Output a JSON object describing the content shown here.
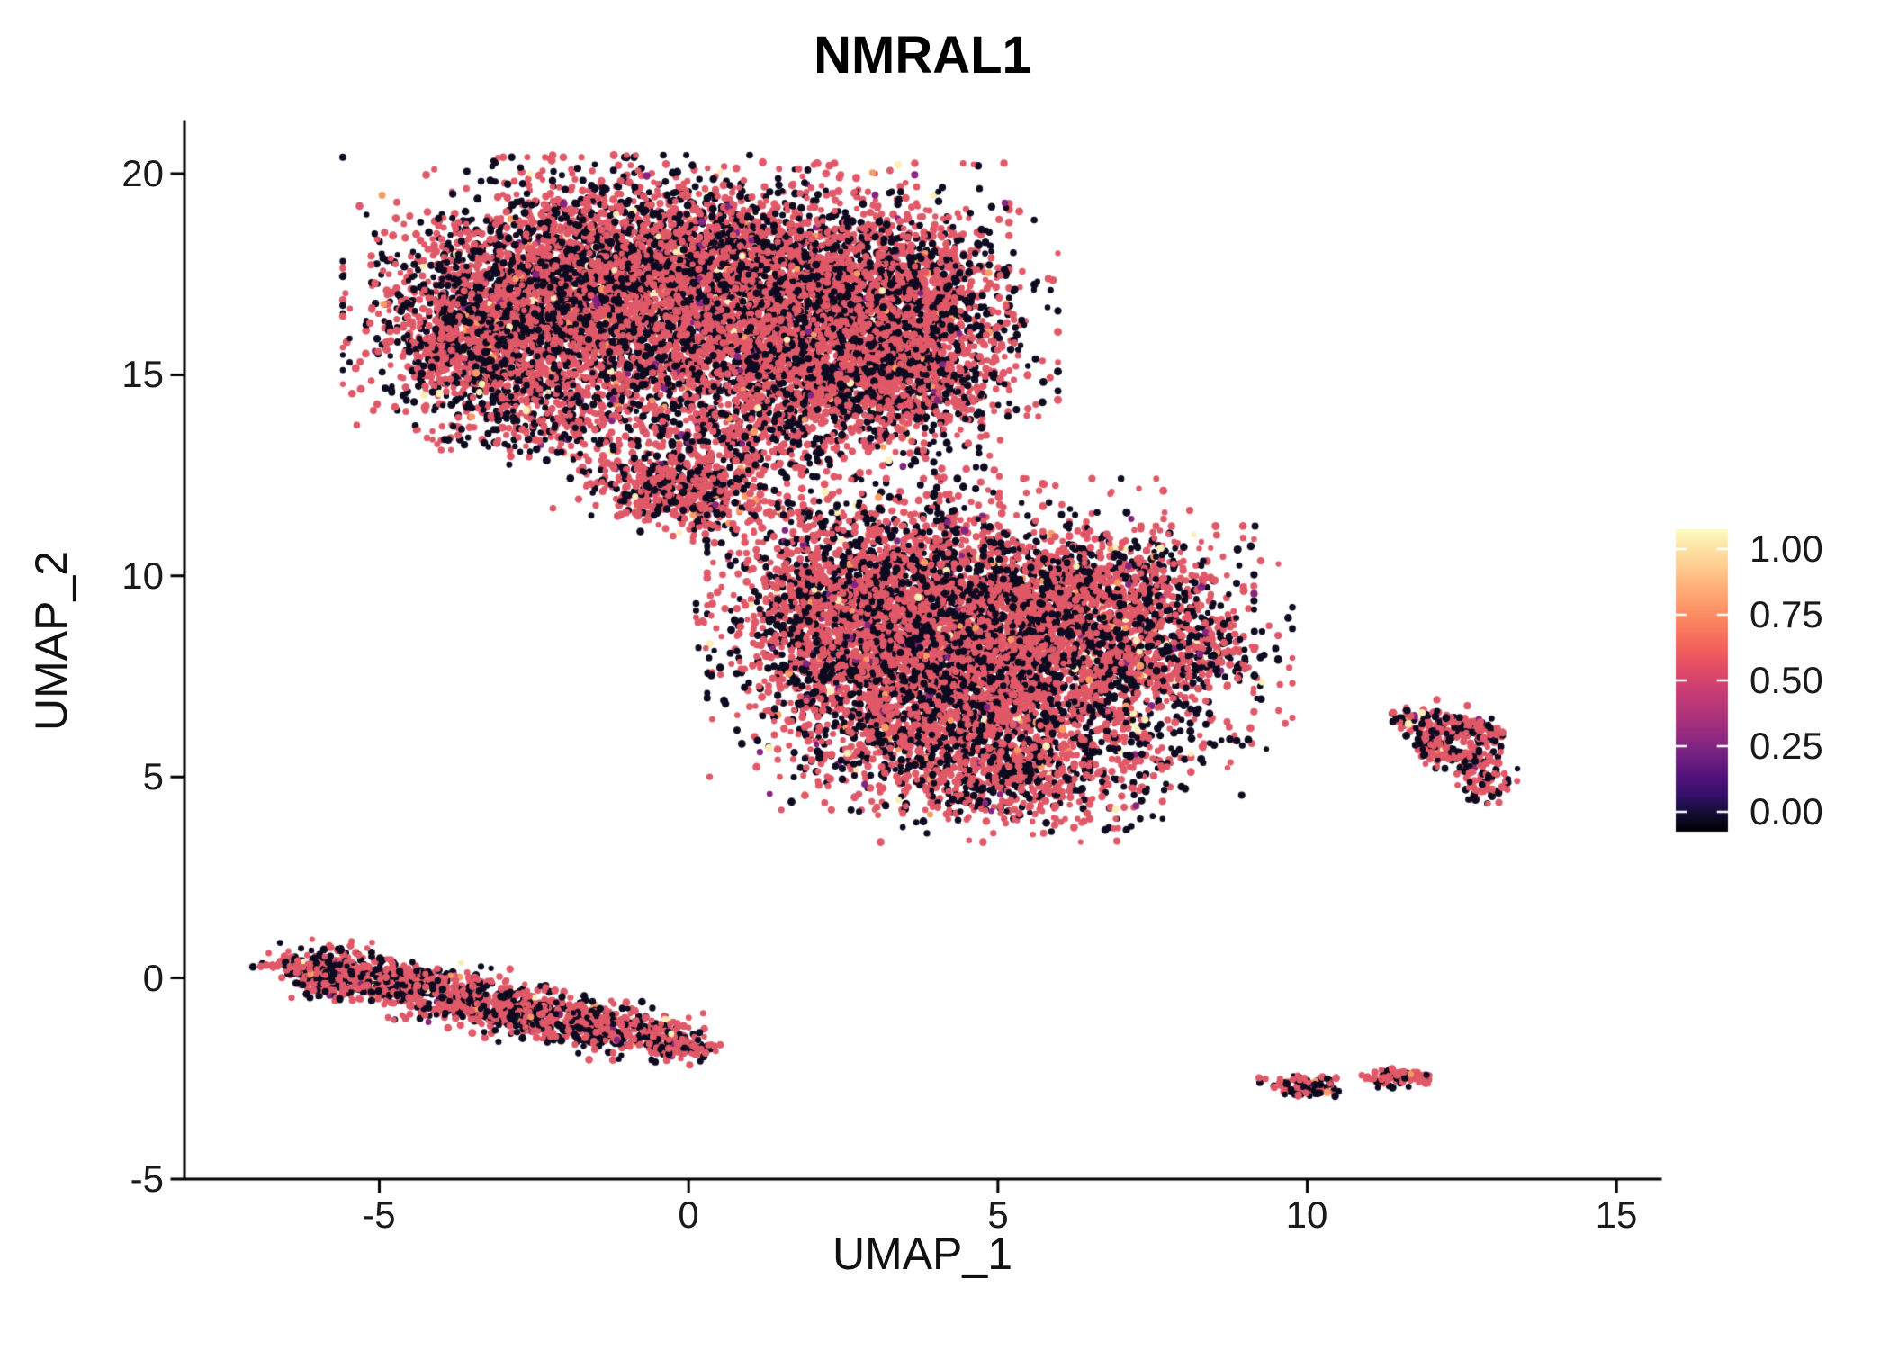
{
  "chart_data": {
    "type": "scatter",
    "title": "NMRAL1",
    "xlabel": "UMAP_1",
    "ylabel": "UMAP_2",
    "xlim": [
      -8.15,
      15.71
    ],
    "ylim": [
      -5,
      21.3
    ],
    "grid": false,
    "x_ticks": [
      -5,
      0,
      5,
      10,
      15
    ],
    "x_tick_labels": [
      "-5",
      "0",
      "5",
      "10",
      "15"
    ],
    "y_ticks": [
      20,
      15,
      10,
      5,
      0,
      -5
    ],
    "y_tick_labels": [
      "20",
      "15",
      "10",
      "5",
      "0",
      "-5"
    ],
    "legend": {
      "position": "right",
      "type": "colorbar",
      "ticks": [
        {
          "value": 1.0,
          "label": "1.00"
        },
        {
          "value": 0.75,
          "label": "0.75"
        },
        {
          "value": 0.5,
          "label": "0.50"
        },
        {
          "value": 0.25,
          "label": "0.25"
        },
        {
          "value": 0.0,
          "label": "0.00"
        }
      ],
      "gradient": [
        "#000004",
        "#120d31",
        "#331068",
        "#50127b",
        "#6b1d81",
        "#882781",
        "#a3307e",
        "#b73779",
        "#ca3e72",
        "#de4968",
        "#ee5b5e",
        "#f7705c",
        "#fb8861",
        "#fe9f6d",
        "#feb57c",
        "#fecf92",
        "#fde4a6",
        "#fcfdbf"
      ]
    },
    "point_style": {
      "radius_px": [
        3.1,
        4.5
      ],
      "color_mix": [
        {
          "hex": "#e05968",
          "weight": 0.575
        },
        {
          "hex": "#0e0b20",
          "weight": 0.39
        },
        {
          "hex": "#85257f",
          "weight": 0.012
        },
        {
          "hex": "#f99c63",
          "weight": 0.012
        },
        {
          "hex": "#fceeb8",
          "weight": 0.011
        }
      ]
    },
    "seed": 42,
    "clusters": [
      {
        "cx": -2.6,
        "cy": 16.9,
        "sx": 1.15,
        "sy": 1.35,
        "n": 1900
      },
      {
        "cx": -0.6,
        "cy": 17.6,
        "sx": 1.2,
        "sy": 1.1,
        "n": 1900
      },
      {
        "cx": 1.8,
        "cy": 17.4,
        "sx": 1.3,
        "sy": 1.1,
        "n": 1900
      },
      {
        "cx": 3.5,
        "cy": 16.3,
        "sx": 0.95,
        "sy": 1.25,
        "n": 1300
      },
      {
        "cx": -3.4,
        "cy": 15.6,
        "sx": 0.8,
        "sy": 0.95,
        "n": 800
      },
      {
        "cx": 0.6,
        "cy": 15.4,
        "sx": 1.4,
        "sy": 0.9,
        "n": 1200
      },
      {
        "cx": 2.6,
        "cy": 14.9,
        "sx": 0.9,
        "sy": 0.7,
        "n": 500
      },
      {
        "cx": 3.9,
        "cy": 14.6,
        "sx": 0.7,
        "sy": 0.8,
        "n": 350
      },
      {
        "cx": 0.9,
        "cy": 13.4,
        "sx": 0.9,
        "sy": 0.6,
        "n": 420
      },
      {
        "cx": -0.1,
        "cy": 12.1,
        "sx": 0.8,
        "sy": 0.45,
        "rot": -20,
        "n": 560
      },
      {
        "cx": -1.9,
        "cy": 13.9,
        "sx": 0.6,
        "sy": 0.5,
        "n": 200
      },
      {
        "cx": 4.2,
        "cy": 9.3,
        "sx": 1.5,
        "sy": 1.2,
        "n": 2200
      },
      {
        "cx": 5.6,
        "cy": 7.6,
        "sx": 1.6,
        "sy": 1.4,
        "n": 2400
      },
      {
        "cx": 3.2,
        "cy": 7.3,
        "sx": 1.1,
        "sy": 1.2,
        "n": 1200
      },
      {
        "cx": 6.8,
        "cy": 9.5,
        "sx": 0.9,
        "sy": 0.8,
        "n": 600
      },
      {
        "cx": 2.2,
        "cy": 9.0,
        "sx": 0.8,
        "sy": 0.9,
        "n": 500
      },
      {
        "cx": 8.1,
        "cy": 8.1,
        "sx": 0.55,
        "sy": 0.45,
        "n": 220
      },
      {
        "cx": 5.0,
        "cy": 5.2,
        "sx": 1.2,
        "sy": 0.7,
        "n": 700
      },
      {
        "cx": 2.6,
        "cy": 11.3,
        "sx": 1.1,
        "sy": 0.8,
        "n": 260
      },
      {
        "cx": 6.9,
        "cy": 3.7,
        "sx": 0.12,
        "sy": 0.08,
        "n": 6
      },
      {
        "type": "strip",
        "x1": -6.15,
        "y1": 0.3,
        "x2": -0.4,
        "y2": -1.55,
        "sx": 0.45,
        "sy": 0.27,
        "n": 1600
      },
      {
        "cx": -5.9,
        "cy": 0.15,
        "sx": 0.35,
        "sy": 0.3,
        "n": 150
      },
      {
        "cx": 0.0,
        "cy": -1.72,
        "sx": 0.22,
        "sy": 0.14,
        "n": 70
      },
      {
        "type": "ring",
        "cx": 12.45,
        "cy": 5.85,
        "r": 0.5,
        "rs": 0.16,
        "n": 240
      },
      {
        "cx": 12.0,
        "cy": 6.4,
        "sx": 0.3,
        "sy": 0.2,
        "n": 70
      },
      {
        "cx": 12.9,
        "cy": 4.9,
        "sx": 0.22,
        "sy": 0.28,
        "n": 80
      },
      {
        "cx": 11.5,
        "cy": 6.5,
        "sx": 0.15,
        "sy": 0.1,
        "n": 18
      },
      {
        "cx": 9.95,
        "cy": -2.7,
        "sx": 0.28,
        "sy": 0.14,
        "n": 90
      },
      {
        "cx": 10.35,
        "cy": -2.55,
        "sx": 0.08,
        "sy": 0.06,
        "n": 12
      },
      {
        "cx": 11.3,
        "cy": -2.5,
        "sx": 0.16,
        "sy": 0.09,
        "n": 45
      },
      {
        "cx": 11.65,
        "cy": -2.45,
        "sx": 0.18,
        "sy": 0.1,
        "n": 45
      }
    ]
  }
}
